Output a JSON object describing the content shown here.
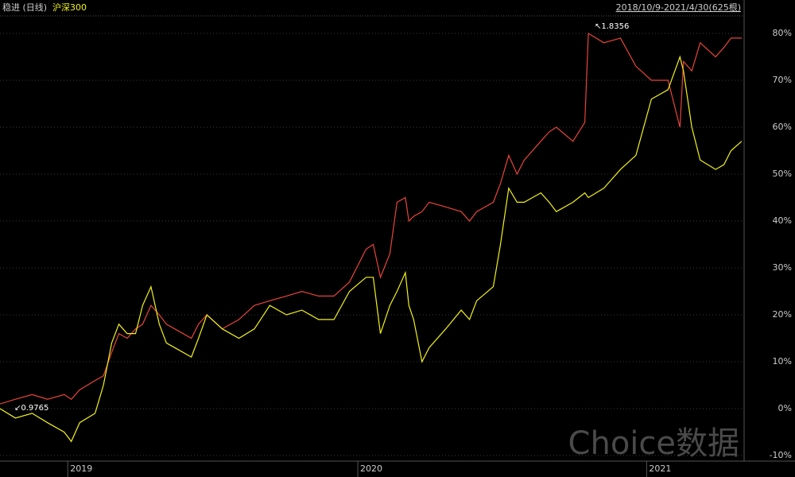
{
  "chart_data": {
    "type": "line",
    "range_label": "2018/10/9-2021/4/30(625根)",
    "annotations": [
      "1.8356",
      "0.9765"
    ],
    "watermark": "Choice数据",
    "x": [
      0,
      13,
      27,
      40,
      54,
      60,
      67,
      80,
      87,
      94,
      100,
      107,
      114,
      120,
      127,
      134,
      140,
      147,
      161,
      167,
      174,
      187,
      201,
      214,
      227,
      241,
      254,
      268,
      281,
      294,
      308,
      314,
      320,
      328,
      334,
      341,
      344,
      348,
      355,
      361,
      375,
      388,
      395,
      401,
      415,
      421,
      428,
      435,
      441,
      455,
      462,
      468,
      482,
      492,
      495,
      508,
      522,
      535,
      548,
      562,
      572,
      575,
      582,
      589,
      602,
      609,
      615,
      624
    ],
    "xlim": [
      0,
      624
    ],
    "xticks": [
      {
        "value": 57,
        "label": "2019"
      },
      {
        "value": 301,
        "label": "2020"
      },
      {
        "value": 544,
        "label": "2021"
      }
    ],
    "series": [
      {
        "name": "稳进 (日线)",
        "color": "#e8443a",
        "values": [
          1,
          2,
          3,
          2,
          3,
          2,
          4,
          6,
          7,
          12,
          16,
          15,
          17,
          18,
          22,
          20,
          18,
          17,
          15,
          18,
          20,
          17,
          19,
          22,
          23,
          24,
          25,
          24,
          24,
          27,
          34,
          35,
          28,
          33,
          44,
          45,
          40,
          41,
          42,
          44,
          43,
          42,
          40,
          42,
          44,
          48,
          54,
          50,
          53,
          57,
          59,
          60,
          57,
          61,
          80,
          78,
          79,
          73,
          70,
          70,
          60,
          74,
          72,
          78,
          75,
          77,
          79,
          79
        ]
      },
      {
        "name": "沪深300",
        "color": "#f2f21a",
        "values": [
          0,
          -2,
          -1,
          -3,
          -5,
          -7,
          -3,
          -1,
          5,
          14,
          18,
          16,
          16,
          22,
          26,
          18,
          14,
          13,
          11,
          15,
          20,
          17,
          15,
          17,
          22,
          20,
          21,
          19,
          19,
          25,
          28,
          28,
          16,
          22,
          25,
          29,
          22,
          19,
          10,
          13,
          17,
          21,
          19,
          23,
          26,
          35,
          47,
          44,
          44,
          46,
          44,
          42,
          44,
          46,
          45,
          47,
          51,
          54,
          66,
          68,
          75,
          72,
          60,
          53,
          51,
          52,
          55,
          57
        ]
      }
    ],
    "ylim": [
      -10,
      80
    ],
    "yticks": [
      {
        "value": -10,
        "label": "-10%"
      },
      {
        "value": 0,
        "label": "0%"
      },
      {
        "value": 10,
        "label": "10%"
      },
      {
        "value": 20,
        "label": "20%"
      },
      {
        "value": 30,
        "label": "30%"
      },
      {
        "value": 40,
        "label": "40%"
      },
      {
        "value": 50,
        "label": "50%"
      },
      {
        "value": 60,
        "label": "60%"
      },
      {
        "value": 70,
        "label": "70%"
      },
      {
        "value": 80,
        "label": "80%"
      }
    ],
    "grid": true
  }
}
